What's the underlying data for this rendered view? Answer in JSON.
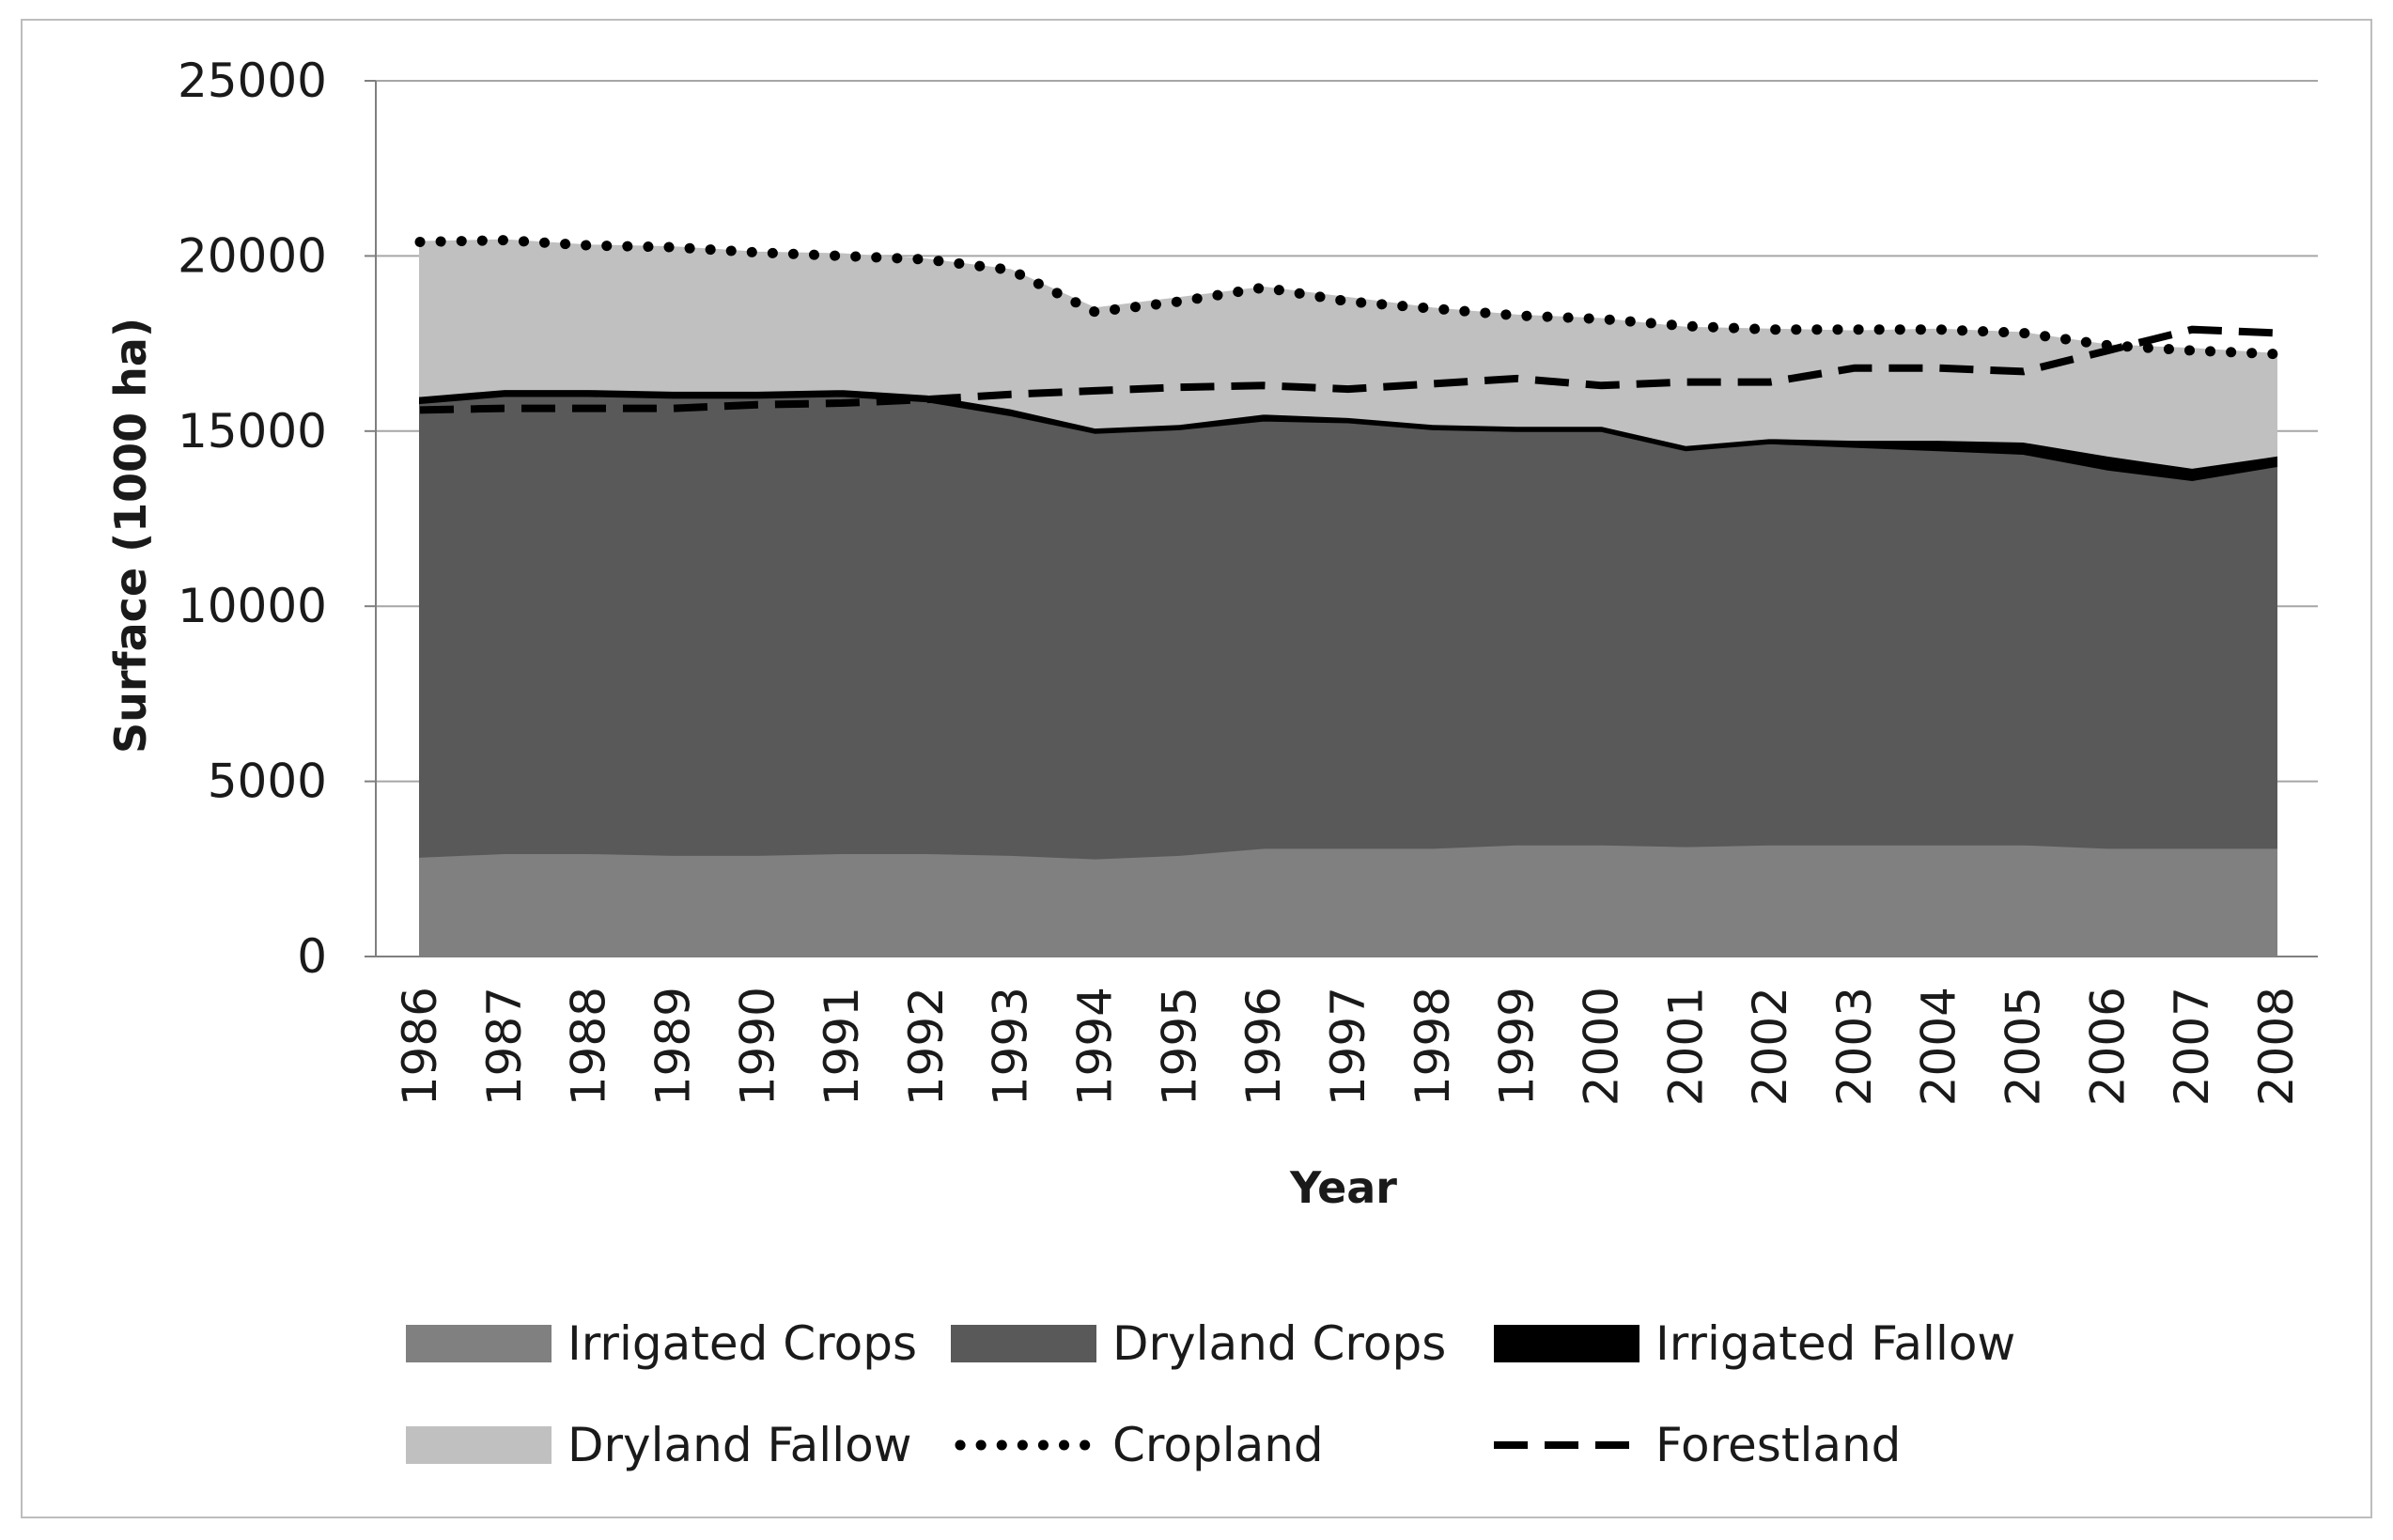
{
  "chart_data": {
    "type": "area",
    "title": "",
    "xlabel": "Year",
    "ylabel": "Surface (1000 ha)",
    "ylim": [
      0,
      25000
    ],
    "yticks": [
      0,
      5000,
      10000,
      15000,
      20000,
      25000
    ],
    "grid": "horizontal",
    "legend_position": "bottom",
    "categories": [
      "1986",
      "1987",
      "1988",
      "1989",
      "1990",
      "1991",
      "1992",
      "1993",
      "1994",
      "1995",
      "1996",
      "1997",
      "1998",
      "1999",
      "2000",
      "2001",
      "2002",
      "2003",
      "2004",
      "2005",
      "2006",
      "2007",
      "2008"
    ],
    "stacked_areas": [
      {
        "name": "Irrigated Crops",
        "color": "#808080",
        "values": [
          2850,
          2950,
          2950,
          2900,
          2900,
          2950,
          2950,
          2900,
          2800,
          2900,
          3100,
          3100,
          3100,
          3200,
          3200,
          3150,
          3200,
          3200,
          3200,
          3200,
          3100,
          3100,
          3100
        ]
      },
      {
        "name": "Dryland Crops",
        "color": "#595959",
        "values": [
          12950,
          13050,
          13050,
          13050,
          13050,
          13050,
          12900,
          12550,
          12150,
          12150,
          12200,
          12150,
          11950,
          11800,
          11800,
          11300,
          11450,
          11350,
          11250,
          11150,
          10800,
          10500,
          10900
        ]
      },
      {
        "name": "Irrigated Fallow",
        "color": "#000000",
        "values": [
          200,
          200,
          200,
          200,
          200,
          200,
          200,
          200,
          150,
          150,
          200,
          150,
          150,
          150,
          150,
          150,
          150,
          200,
          300,
          350,
          400,
          350,
          300
        ]
      },
      {
        "name": "Dryland Fallow",
        "color": "#c0c0c0",
        "values": [
          4400,
          4250,
          4100,
          4100,
          3950,
          3850,
          3850,
          3950,
          3400,
          3600,
          3600,
          3400,
          3300,
          3150,
          3050,
          3350,
          3100,
          3100,
          3150,
          3100,
          3150,
          3400,
          2900
        ]
      }
    ],
    "line_series": [
      {
        "name": "Cropland",
        "style": "dotted",
        "color": "#000000",
        "values": [
          20400,
          20450,
          20300,
          20250,
          20100,
          20000,
          19900,
          19600,
          18400,
          18700,
          19100,
          18700,
          18500,
          18300,
          18200,
          18000,
          17900,
          17900,
          17900,
          17800,
          17450,
          17300,
          17200
        ]
      },
      {
        "name": "Forestland",
        "style": "dashed",
        "color": "#000000",
        "values": [
          15600,
          15650,
          15650,
          15650,
          15750,
          15800,
          15900,
          16050,
          16150,
          16250,
          16300,
          16200,
          16350,
          16500,
          16300,
          16400,
          16400,
          16800,
          16800,
          16700,
          17300,
          17900,
          17800
        ]
      }
    ],
    "legend": [
      {
        "label": "Irrigated Crops",
        "kind": "area",
        "color": "#808080"
      },
      {
        "label": "Dryland Crops",
        "kind": "area",
        "color": "#595959"
      },
      {
        "label": "Irrigated Fallow",
        "kind": "area",
        "color": "#000000"
      },
      {
        "label": "Dryland Fallow",
        "kind": "area",
        "color": "#c0c0c0"
      },
      {
        "label": "Cropland",
        "kind": "dotted-line",
        "color": "#000000"
      },
      {
        "label": "Forestland",
        "kind": "dashed-line",
        "color": "#000000"
      }
    ]
  }
}
